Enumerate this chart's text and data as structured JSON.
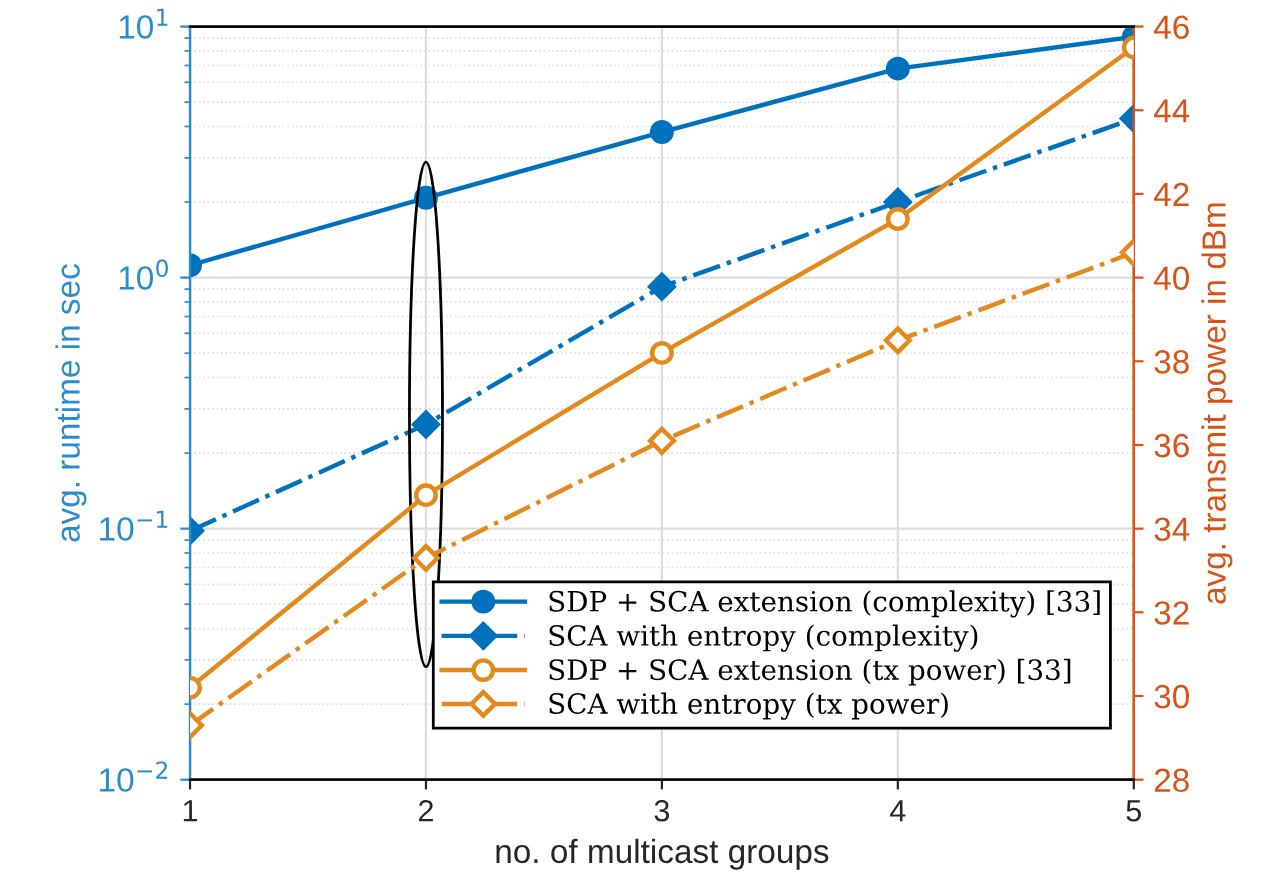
{
  "chart_data": {
    "type": "line",
    "xlabel": "no. of multicast groups",
    "ylabel": "avg. runtime in sec",
    "y2label": "avg. transmit power in dBm",
    "x": [
      1,
      2,
      3,
      4,
      5
    ],
    "xlim": [
      1,
      5
    ],
    "xticks": [
      1,
      2,
      3,
      4,
      5
    ],
    "log": "y",
    "ylim": [
      0.01,
      10
    ],
    "yticks": [
      {
        "value": 0.01,
        "label": "10$^{−2}$"
      },
      {
        "value": 0.1,
        "label": "10$^{−1}$"
      },
      {
        "value": 1,
        "label": "10$^{0}$"
      },
      {
        "value": 10,
        "label": "10$^{1}$"
      }
    ],
    "y2lim": [
      28,
      46
    ],
    "y2ticks": [
      28,
      30,
      32,
      34,
      36,
      38,
      40,
      42,
      44,
      46
    ],
    "grid": true,
    "legend": "bottom right",
    "series": [
      {
        "name": "SDP + SCA extension (complexity) [33]",
        "color": "#0072bd",
        "marker": "circle",
        "line_style": "solid",
        "values": [
          1.12,
          2.08,
          3.8,
          6.8,
          9.1
        ]
      },
      {
        "name": "SCA with entropy (complexity)",
        "color": "#0072bd",
        "marker": "diamond",
        "line_style": "dashdot",
        "values": [
          0.098,
          0.26,
          0.92,
          2.0,
          4.3
        ]
      },
      {
        "name": "SDP + SCA extension (tx power) [33]",
        "color": "#e38a1e",
        "marker": "circle",
        "line_style": "solid",
        "axis": "y2",
        "values": [
          30.2,
          34.8,
          38.2,
          41.4,
          45.5
        ]
      },
      {
        "name": "SCA with entropy (tx power)",
        "color": "#e38a1e",
        "marker": "diamond",
        "line_style": "dashdot",
        "axis": "y2",
        "values": [
          29.3,
          33.3,
          36.1,
          38.5,
          40.6
        ]
      }
    ]
  }
}
